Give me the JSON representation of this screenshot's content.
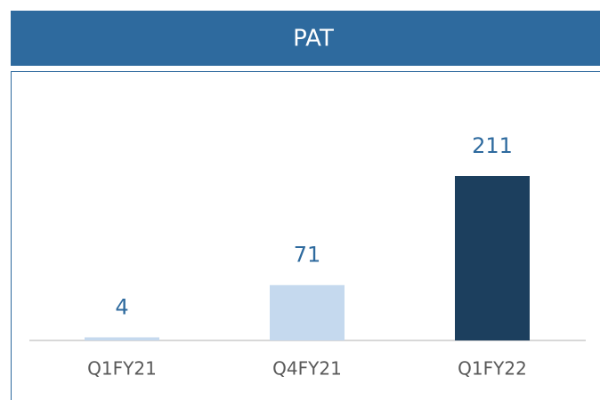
{
  "chart_data": {
    "type": "bar",
    "title": "PAT",
    "categories": [
      "Q1FY21",
      "Q4FY21",
      "Q1FY22"
    ],
    "values": [
      4,
      71,
      211
    ],
    "colors": [
      "#c5d9ee",
      "#c5d9ee",
      "#1c3f5e"
    ]
  }
}
